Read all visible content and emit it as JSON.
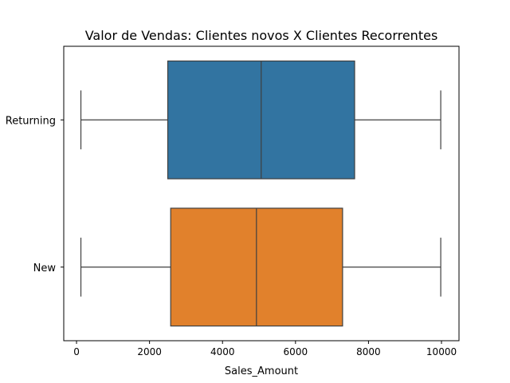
{
  "chart_data": {
    "type": "boxplot",
    "orientation": "horizontal",
    "title": "Valor de Vendas: Clientes novos X Clientes Recorrentes",
    "xlabel": "Sales_Amount",
    "ylabel": "",
    "xlim": [
      -350,
      10480
    ],
    "xticks": [
      0,
      2000,
      4000,
      6000,
      8000,
      10000
    ],
    "grid": false,
    "categories": [
      {
        "label": "Returning",
        "whisker_low": 120,
        "q1": 2500,
        "median": 5060,
        "q3": 7620,
        "whisker_high": 9980,
        "color": "#3274a1"
      },
      {
        "label": "New",
        "whisker_low": 120,
        "q1": 2580,
        "median": 4930,
        "q3": 7290,
        "whisker_high": 9980,
        "color": "#e1812c"
      }
    ]
  }
}
